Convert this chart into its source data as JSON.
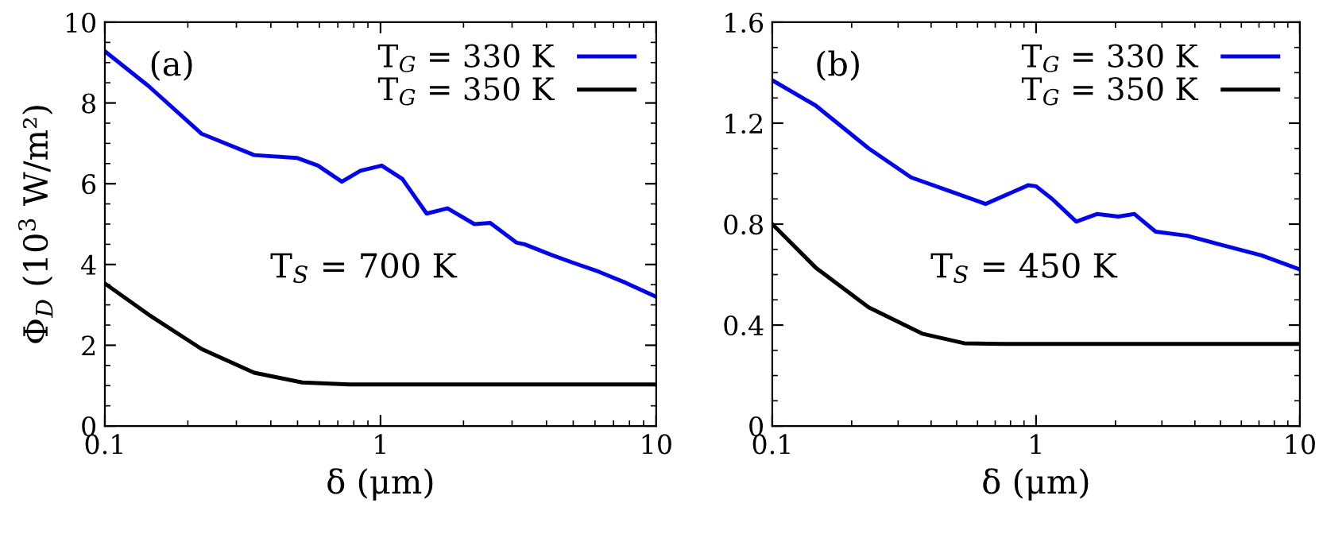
{
  "chart_data": [
    {
      "type": "line",
      "xlabel": "δ (μm)",
      "ylabel": "Φ$_{D}$ (10$^{3}$ W/m²)",
      "log": "x",
      "xlim": [
        0.1,
        10
      ],
      "xticks": [
        {
          "value": 0.1,
          "label": "0.1"
        },
        1,
        10
      ],
      "ylim": [
        0,
        10
      ],
      "yticks": [
        0,
        2,
        4,
        6,
        8,
        10
      ],
      "legend": "top right",
      "grid": false,
      "annotations": [
        {
          "text": "(a)"
        },
        {
          "text": "T$_{S}$ = 700 K"
        }
      ],
      "series": [
        {
          "name": "T$_{G}$ = 330 K",
          "color": "#0000ff",
          "x": [
            0.1,
            0.144,
            0.224,
            0.348,
            0.497,
            0.593,
            0.724,
            0.845,
            1.01,
            1.2,
            1.47,
            1.75,
            2.19,
            2.5,
            3.12,
            3.33,
            4.16,
            4.96,
            6.2,
            7.73,
            10
          ],
          "values": [
            9.28,
            8.42,
            7.24,
            6.71,
            6.64,
            6.45,
            6.05,
            6.32,
            6.45,
            6.12,
            5.26,
            5.39,
            5.0,
            5.03,
            4.54,
            4.5,
            4.24,
            4.05,
            3.82,
            3.55,
            3.2
          ]
        },
        {
          "name": "T$_{G}$ = 350 K",
          "color": "#000000",
          "x": [
            0.1,
            0.144,
            0.224,
            0.348,
            0.52,
            0.77,
            1,
            2,
            5,
            10
          ],
          "values": [
            3.53,
            2.76,
            1.91,
            1.32,
            1.08,
            1.03,
            1.03,
            1.03,
            1.03,
            1.03
          ]
        }
      ]
    },
    {
      "type": "line",
      "xlabel": "δ (μm)",
      "log": "x",
      "xlim": [
        0.1,
        10
      ],
      "xticks": [
        {
          "value": 0.1,
          "label": "0.1"
        },
        1,
        10
      ],
      "ylim": [
        0,
        1.6
      ],
      "yticks": [
        0,
        0.4,
        0.8,
        1.2,
        1.6
      ],
      "legend": "top right",
      "grid": false,
      "annotations": [
        {
          "text": "(b)"
        },
        {
          "text": "T$_{S}$ = 450 K"
        }
      ],
      "series": [
        {
          "name": "T$_{G}$ = 330 K",
          "color": "#0000ff",
          "x": [
            0.1,
            0.146,
            0.232,
            0.336,
            0.465,
            0.644,
            0.933,
            1.0,
            1.15,
            1.42,
            1.7,
            2.05,
            2.36,
            2.84,
            3.74,
            4.94,
            7.16,
            10
          ],
          "values": [
            1.37,
            1.27,
            1.1,
            0.985,
            0.933,
            0.88,
            0.954,
            0.95,
            0.9,
            0.81,
            0.84,
            0.83,
            0.84,
            0.77,
            0.754,
            0.72,
            0.676,
            0.62
          ]
        },
        {
          "name": "T$_{G}$ = 350 K",
          "color": "#000000",
          "x": [
            0.1,
            0.146,
            0.232,
            0.37,
            0.534,
            0.74,
            1,
            2,
            5,
            10
          ],
          "values": [
            0.8,
            0.628,
            0.47,
            0.366,
            0.328,
            0.325,
            0.325,
            0.325,
            0.325,
            0.325
          ]
        }
      ]
    }
  ]
}
